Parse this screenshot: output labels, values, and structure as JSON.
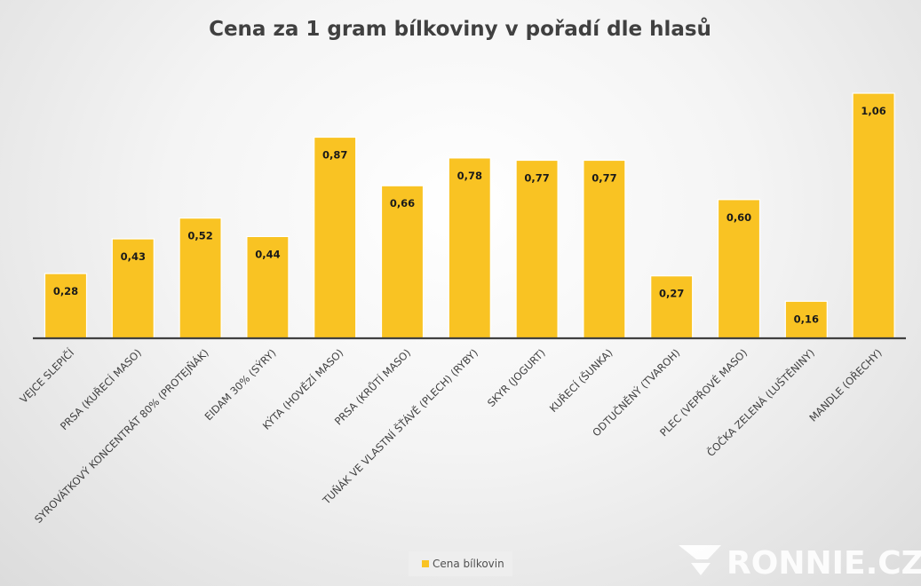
{
  "chart_data": {
    "type": "bar",
    "title": "Cena za 1 gram bílkoviny v pořadí dle hlasů",
    "categories": [
      "VEJCE SLEPIČÍ",
      "PRSA (KUŘECÍ MASO)",
      "SYROVÁTKOVÝ KONCENTRÁT 80% (PROTEJŇÁK)",
      "EIDAM 30% (SÝRY)",
      "KÝTA (HOVĚZÍ MASO)",
      "PRSA (KRŮTÍ MASO)",
      "TUŇÁK VE VLASTNÍ ŠŤÁVĚ (PLECH) (RYBY)",
      "SKYR (JOGURT)",
      "KUŘECÍ (ŠUNKA)",
      "ODTUČNĚNÝ (TVAROH)",
      "PLEC (VEPŘOVÉ MASO)",
      "ČOČKA ZELENÁ (LUŠTĚNINY)",
      "MANDLE (OŘECHY)"
    ],
    "series": [
      {
        "name": "Cena bílkovin",
        "values": [
          0.28,
          0.43,
          0.52,
          0.44,
          0.87,
          0.66,
          0.78,
          0.77,
          0.77,
          0.27,
          0.6,
          0.16,
          1.06
        ],
        "labels": [
          "0,28",
          "0,43",
          "0,52",
          "0,44",
          "0,87",
          "0,66",
          "0,78",
          "0,77",
          "0,77",
          "0,27",
          "0,60",
          "0,16",
          "1,06"
        ]
      }
    ],
    "ylim": [
      0,
      1.06
    ],
    "grid": false,
    "legend_position": "bottom",
    "bar_color": "#f9c323"
  },
  "legend": {
    "label": "Cena bílkovin",
    "color": "#f9c323"
  },
  "watermark": {
    "text": "RONNIE.CZ"
  }
}
